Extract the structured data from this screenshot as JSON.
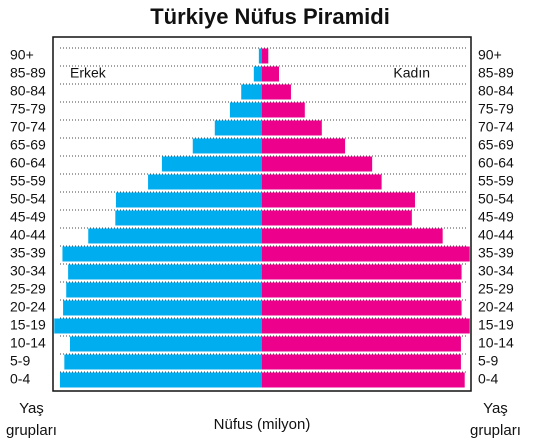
{
  "chart_data": {
    "type": "pyramid",
    "title": "Türkiye Nüfus Piramidi",
    "x_label": "Nüfus (milyon)",
    "y_label": "Yaş\ngrupları",
    "categories": [
      "90+",
      "85-89",
      "80-84",
      "75-79",
      "70-74",
      "65-69",
      "60-64",
      "55-59",
      "50-54",
      "45-49",
      "40-44",
      "35-39",
      "30-34",
      "25-29",
      "20-24",
      "15-19",
      "10-14",
      "5-9",
      "0-4"
    ],
    "series": [
      {
        "name": "Erkek",
        "color": "#00aeef",
        "values": [
          0.05,
          0.13,
          0.33,
          0.51,
          0.75,
          1.1,
          1.59,
          1.81,
          2.32,
          2.33,
          2.76,
          3.17,
          3.08,
          3.11,
          3.16,
          3.3,
          3.05,
          3.14,
          3.21
        ]
      },
      {
        "name": "Kadın",
        "color": "#ec008c",
        "values": [
          0.1,
          0.27,
          0.46,
          0.68,
          0.95,
          1.32,
          1.75,
          1.9,
          2.43,
          2.38,
          2.87,
          3.3,
          3.17,
          3.16,
          3.17,
          3.3,
          3.16,
          3.16,
          3.22
        ]
      }
    ],
    "xlim": [
      0,
      3.32
    ]
  }
}
